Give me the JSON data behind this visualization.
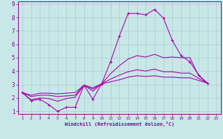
{
  "xlabel": "Windchill (Refroidissement éolien,°C)",
  "background_color": "#c8e8e8",
  "grid_color": "#a8cccc",
  "line_color": "#aa00aa",
  "xlim": [
    0.5,
    23.5
  ],
  "ylim": [
    0.8,
    9.2
  ],
  "xticks": [
    1,
    2,
    3,
    4,
    5,
    6,
    7,
    8,
    9,
    10,
    11,
    12,
    13,
    14,
    15,
    16,
    17,
    18,
    19,
    20,
    21,
    22,
    23
  ],
  "yticks": [
    1,
    2,
    3,
    4,
    5,
    6,
    7,
    8,
    9
  ],
  "series": [
    {
      "x": [
        1,
        2,
        3,
        4,
        5,
        6,
        7,
        8,
        9,
        10,
        11,
        12,
        13,
        14,
        15,
        16,
        17,
        18,
        19,
        20,
        21,
        22
      ],
      "y": [
        2.4,
        1.8,
        1.9,
        1.5,
        1.0,
        1.3,
        1.3,
        2.95,
        1.9,
        3.05,
        4.7,
        6.6,
        8.3,
        8.3,
        8.2,
        8.6,
        7.95,
        6.3,
        5.15,
        4.7,
        3.7,
        3.1
      ],
      "marker": true
    },
    {
      "x": [
        1,
        2,
        3,
        4,
        5,
        6,
        7,
        8,
        9,
        10,
        11,
        12,
        13,
        14,
        15,
        16,
        17,
        18,
        19,
        20,
        21,
        22
      ],
      "y": [
        2.4,
        1.85,
        2.0,
        1.95,
        1.75,
        1.95,
        2.05,
        2.95,
        2.5,
        3.05,
        3.8,
        4.4,
        4.9,
        5.15,
        5.05,
        5.25,
        5.0,
        5.05,
        5.0,
        5.0,
        3.65,
        3.1
      ],
      "marker": false
    },
    {
      "x": [
        1,
        2,
        3,
        4,
        5,
        6,
        7,
        8,
        9,
        10,
        11,
        12,
        13,
        14,
        15,
        16,
        17,
        18,
        19,
        20,
        21,
        22
      ],
      "y": [
        2.4,
        2.1,
        2.2,
        2.2,
        2.1,
        2.15,
        2.2,
        2.95,
        2.65,
        3.05,
        3.4,
        3.7,
        3.95,
        4.1,
        4.0,
        4.15,
        3.95,
        3.95,
        3.85,
        3.85,
        3.45,
        3.1
      ],
      "marker": false
    },
    {
      "x": [
        1,
        2,
        3,
        4,
        5,
        6,
        7,
        8,
        9,
        10,
        11,
        12,
        13,
        14,
        15,
        16,
        17,
        18,
        19,
        20,
        21,
        22
      ],
      "y": [
        2.4,
        2.2,
        2.35,
        2.35,
        2.3,
        2.35,
        2.4,
        2.95,
        2.75,
        3.05,
        3.2,
        3.35,
        3.55,
        3.65,
        3.6,
        3.65,
        3.55,
        3.55,
        3.5,
        3.5,
        3.3,
        3.1
      ],
      "marker": false
    }
  ]
}
